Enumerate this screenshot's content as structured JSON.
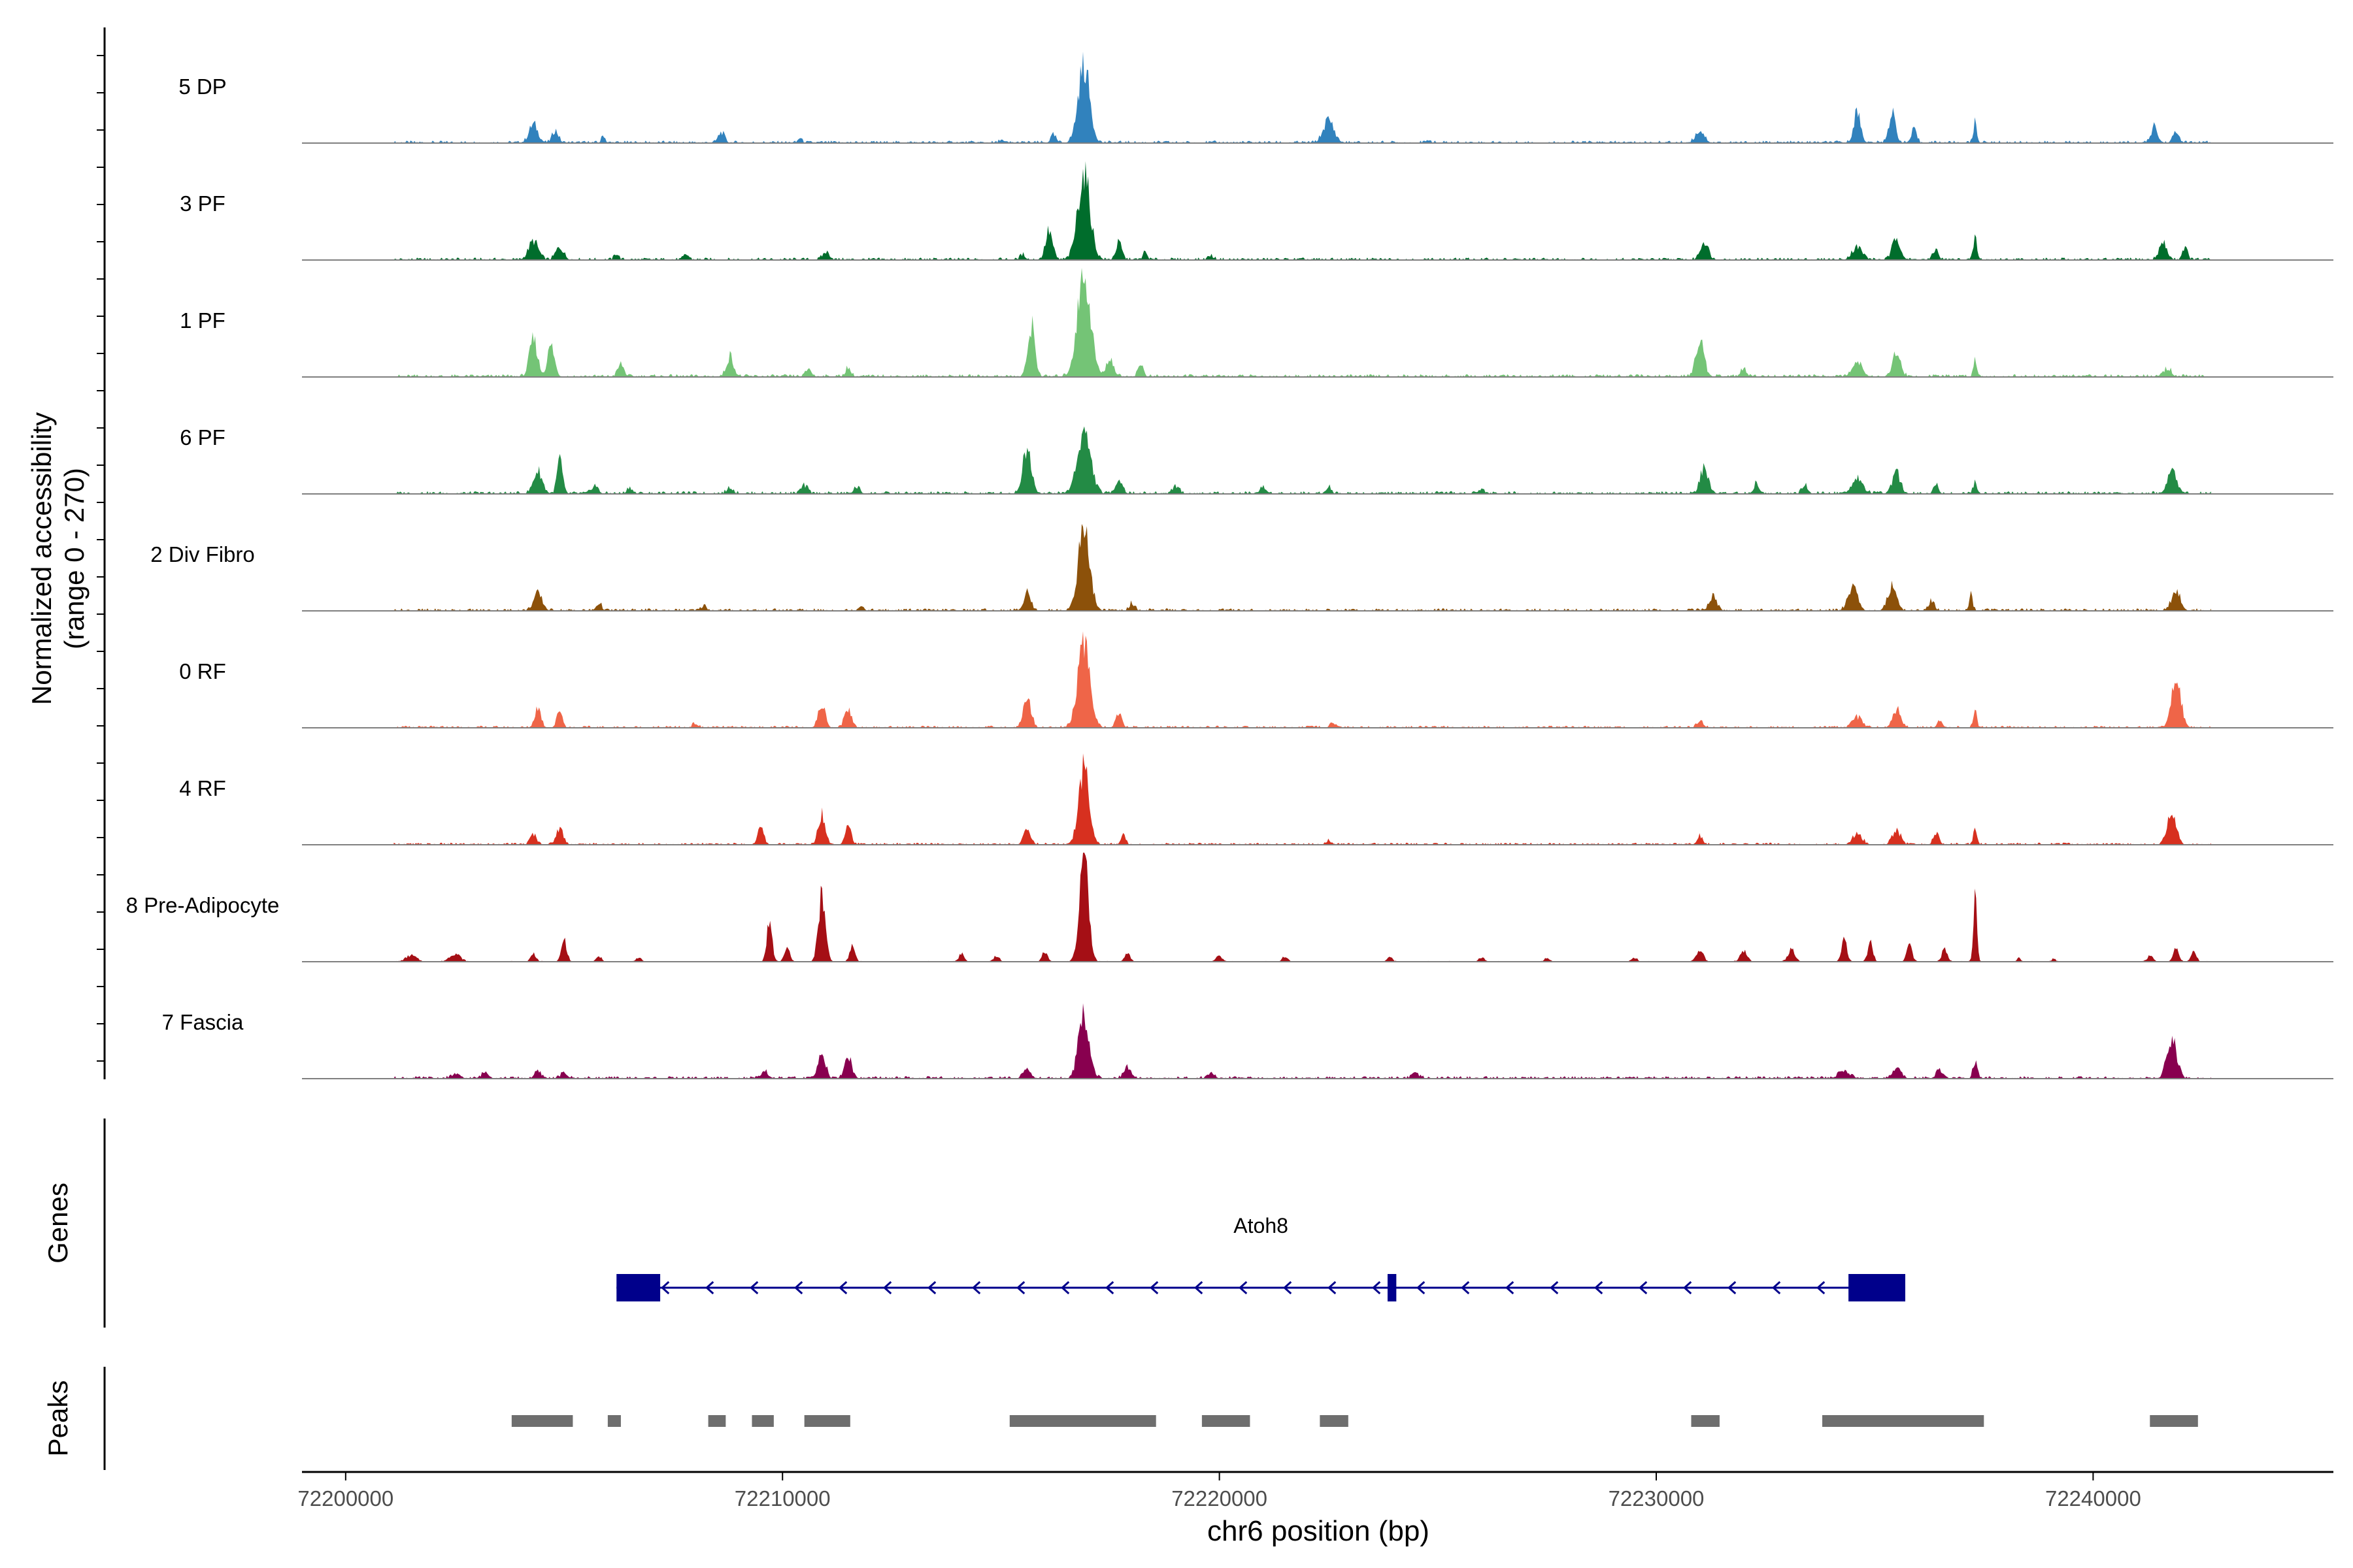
{
  "chart_data": {
    "type": "area",
    "title": "",
    "ylabel": "Normalized accessibility",
    "ylabel_range": "(range 0 - 270)",
    "y_range": [
      0,
      270
    ],
    "xlabel": "chr6 position (bp)",
    "xlim": [
      72199000,
      72245500
    ],
    "x_ticks": [
      72200000,
      72210000,
      72220000,
      72230000,
      72240000
    ],
    "x_tick_labels": [
      "72200000",
      "72210000",
      "72220000",
      "72230000",
      "72240000"
    ],
    "coverage_start": 72201100,
    "coverage_end": 72242700,
    "tracks": [
      {
        "name": "5 DP",
        "color": "#3182bd",
        "baseline": 18,
        "peaks": [
          [
            72204300,
            45,
            100
          ],
          [
            72204800,
            30,
            70
          ],
          [
            72205900,
            18,
            40
          ],
          [
            72208600,
            25,
            70
          ],
          [
            72210400,
            12,
            40
          ],
          [
            72215000,
            8,
            40
          ],
          [
            72216200,
            18,
            60
          ],
          [
            72216900,
            190,
            130
          ],
          [
            72222500,
            55,
            120
          ],
          [
            72224800,
            8,
            40
          ],
          [
            72231000,
            30,
            100
          ],
          [
            72234600,
            75,
            80
          ],
          [
            72235400,
            70,
            80
          ],
          [
            72235900,
            30,
            60
          ],
          [
            72237300,
            50,
            40
          ],
          [
            72241400,
            40,
            70
          ],
          [
            72241900,
            25,
            70
          ]
        ]
      },
      {
        "name": "3 PF",
        "color": "#006d2c",
        "baseline": 18,
        "peaks": [
          [
            72204300,
            45,
            110
          ],
          [
            72204900,
            30,
            90
          ],
          [
            72206200,
            15,
            50
          ],
          [
            72207800,
            12,
            60
          ],
          [
            72211000,
            18,
            80
          ],
          [
            72215500,
            12,
            60
          ],
          [
            72216100,
            70,
            80
          ],
          [
            72216900,
            210,
            140
          ],
          [
            72217700,
            40,
            70
          ],
          [
            72218300,
            18,
            50
          ],
          [
            72219800,
            10,
            60
          ],
          [
            72231100,
            45,
            90
          ],
          [
            72234600,
            30,
            120
          ],
          [
            72235500,
            55,
            90
          ],
          [
            72236400,
            25,
            60
          ],
          [
            72237300,
            55,
            40
          ],
          [
            72241600,
            40,
            90
          ],
          [
            72242100,
            30,
            60
          ]
        ]
      },
      {
        "name": "1 PF",
        "color": "#74c476",
        "baseline": 20,
        "peaks": [
          [
            72204300,
            90,
            90
          ],
          [
            72204700,
            75,
            80
          ],
          [
            72206300,
            30,
            70
          ],
          [
            72208800,
            50,
            80
          ],
          [
            72210600,
            20,
            60
          ],
          [
            72211500,
            22,
            60
          ],
          [
            72215700,
            125,
            80
          ],
          [
            72216900,
            250,
            150
          ],
          [
            72217500,
            45,
            80
          ],
          [
            72218200,
            30,
            60
          ],
          [
            72231000,
            95,
            90
          ],
          [
            72232000,
            20,
            60
          ],
          [
            72234600,
            35,
            120
          ],
          [
            72235500,
            60,
            90
          ],
          [
            72237300,
            45,
            40
          ],
          [
            72241700,
            20,
            90
          ]
        ]
      },
      {
        "name": "6 PF",
        "color": "#238b45",
        "baseline": 20,
        "peaks": [
          [
            72204400,
            55,
            100
          ],
          [
            72204900,
            85,
            60
          ],
          [
            72205700,
            20,
            70
          ],
          [
            72206500,
            15,
            60
          ],
          [
            72208800,
            15,
            70
          ],
          [
            72210500,
            18,
            80
          ],
          [
            72211700,
            15,
            70
          ],
          [
            72215600,
            110,
            100
          ],
          [
            72216900,
            150,
            150
          ],
          [
            72217700,
            35,
            80
          ],
          [
            72219000,
            18,
            80
          ],
          [
            72221000,
            15,
            70
          ],
          [
            72222500,
            18,
            60
          ],
          [
            72226000,
            10,
            70
          ],
          [
            72231100,
            65,
            90
          ],
          [
            72232300,
            25,
            60
          ],
          [
            72233400,
            20,
            60
          ],
          [
            72234600,
            40,
            120
          ],
          [
            72235500,
            50,
            90
          ],
          [
            72236400,
            20,
            60
          ],
          [
            72237300,
            30,
            40
          ],
          [
            72241800,
            60,
            100
          ]
        ]
      },
      {
        "name": "2 Div Fibro",
        "color": "#8c510a",
        "baseline": 18,
        "peaks": [
          [
            72204400,
            40,
            100
          ],
          [
            72205800,
            18,
            60
          ],
          [
            72208200,
            12,
            60
          ],
          [
            72211800,
            12,
            60
          ],
          [
            72215600,
            45,
            80
          ],
          [
            72216900,
            200,
            130
          ],
          [
            72218000,
            18,
            60
          ],
          [
            72231300,
            35,
            80
          ],
          [
            72234500,
            55,
            110
          ],
          [
            72235400,
            60,
            100
          ],
          [
            72236300,
            25,
            60
          ],
          [
            72237200,
            38,
            40
          ],
          [
            72241900,
            50,
            100
          ]
        ]
      },
      {
        "name": "0 RF",
        "color": "#ef6548",
        "baseline": 15,
        "peaks": [
          [
            72204400,
            50,
            70
          ],
          [
            72204900,
            45,
            60
          ],
          [
            72208000,
            10,
            60
          ],
          [
            72210900,
            55,
            80
          ],
          [
            72211500,
            45,
            80
          ],
          [
            72215600,
            70,
            90
          ],
          [
            72216900,
            200,
            140
          ],
          [
            72217700,
            30,
            70
          ],
          [
            72222600,
            12,
            60
          ],
          [
            72231000,
            18,
            60
          ],
          [
            72234600,
            25,
            110
          ],
          [
            72235500,
            45,
            90
          ],
          [
            72236500,
            15,
            60
          ],
          [
            72237300,
            40,
            40
          ],
          [
            72241900,
            110,
            110
          ]
        ]
      },
      {
        "name": "4 RF",
        "color": "#d7301f",
        "baseline": 15,
        "peaks": [
          [
            72204300,
            25,
            70
          ],
          [
            72204900,
            40,
            80
          ],
          [
            72209500,
            40,
            70
          ],
          [
            72210900,
            75,
            80
          ],
          [
            72211500,
            50,
            70
          ],
          [
            72215600,
            35,
            80
          ],
          [
            72216900,
            190,
            120
          ],
          [
            72217800,
            20,
            60
          ],
          [
            72222500,
            10,
            60
          ],
          [
            72231000,
            20,
            60
          ],
          [
            72234600,
            25,
            110
          ],
          [
            72235500,
            35,
            90
          ],
          [
            72236400,
            30,
            60
          ],
          [
            72237300,
            40,
            40
          ],
          [
            72241800,
            80,
            100
          ]
        ]
      },
      {
        "name": "8 Pre-Adipocyte",
        "color": "#a50f15",
        "baseline": 5,
        "peaks": [
          [
            72201500,
            15,
            120
          ],
          [
            72202500,
            20,
            120
          ],
          [
            72204300,
            20,
            60
          ],
          [
            72205000,
            55,
            60
          ],
          [
            72205800,
            12,
            60
          ],
          [
            72206700,
            10,
            60
          ],
          [
            72209700,
            100,
            60
          ],
          [
            72210100,
            35,
            60
          ],
          [
            72210900,
            160,
            80
          ],
          [
            72211600,
            40,
            60
          ],
          [
            72214100,
            20,
            60
          ],
          [
            72214900,
            15,
            60
          ],
          [
            72216000,
            25,
            60
          ],
          [
            72216900,
            260,
            100
          ],
          [
            72217900,
            20,
            60
          ],
          [
            72220000,
            15,
            60
          ],
          [
            72221500,
            12,
            60
          ],
          [
            72223900,
            10,
            60
          ],
          [
            72226000,
            10,
            60
          ],
          [
            72227500,
            8,
            60
          ],
          [
            72229500,
            10,
            60
          ],
          [
            72231000,
            25,
            80
          ],
          [
            72232000,
            25,
            80
          ],
          [
            72233100,
            30,
            80
          ],
          [
            72234300,
            60,
            60
          ],
          [
            72234900,
            45,
            60
          ],
          [
            72235800,
            40,
            60
          ],
          [
            72236600,
            30,
            60
          ],
          [
            72237300,
            160,
            40
          ],
          [
            72238300,
            8,
            40
          ],
          [
            72239100,
            8,
            40
          ],
          [
            72241300,
            15,
            60
          ],
          [
            72241900,
            35,
            60
          ],
          [
            72242300,
            25,
            60
          ]
        ]
      },
      {
        "name": "7 Fascia",
        "color": "#88004f",
        "baseline": 18,
        "peaks": [
          [
            72202500,
            10,
            80
          ],
          [
            72203200,
            15,
            80
          ],
          [
            72204400,
            15,
            80
          ],
          [
            72205000,
            12,
            80
          ],
          [
            72209600,
            15,
            80
          ],
          [
            72210900,
            70,
            80
          ],
          [
            72211500,
            55,
            80
          ],
          [
            72215600,
            25,
            80
          ],
          [
            72216900,
            160,
            120
          ],
          [
            72217900,
            25,
            80
          ],
          [
            72219800,
            12,
            80
          ],
          [
            72224500,
            10,
            80
          ],
          [
            72234300,
            20,
            120
          ],
          [
            72235500,
            25,
            100
          ],
          [
            72236500,
            20,
            80
          ],
          [
            72237300,
            40,
            50
          ],
          [
            72241800,
            95,
            110
          ]
        ]
      }
    ],
    "genes": [
      {
        "name": "Atoh8",
        "start": 72206200,
        "end": 72235700,
        "strand": "-",
        "exons": [
          [
            72206200,
            72207200
          ],
          [
            72223850,
            72224050
          ],
          [
            72234400,
            72235700
          ]
        ]
      }
    ],
    "peak_regions": [
      [
        72203800,
        72205200
      ],
      [
        72206000,
        72206300
      ],
      [
        72208300,
        72208700
      ],
      [
        72209300,
        72209800
      ],
      [
        72210500,
        72211550
      ],
      [
        72215200,
        72218550
      ],
      [
        72219600,
        72220700
      ],
      [
        72222300,
        72222950
      ],
      [
        72230800,
        72231450
      ],
      [
        72233800,
        72237500
      ],
      [
        72241300,
        72242400
      ]
    ]
  },
  "panel_labels": {
    "genes": "Genes",
    "peaks": "Peaks"
  }
}
